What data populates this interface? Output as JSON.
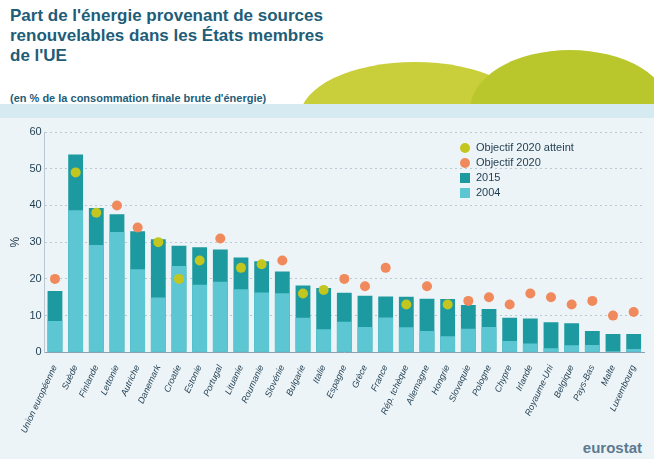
{
  "chart_data": {
    "type": "bar",
    "title": "Part de l'énergie provenant de sources renouvelables dans les États membres de l'UE",
    "subtitle": "(en % de la consommation finale brute d'énergie)",
    "y_label": "%",
    "annotations": [
      "eurostat"
    ],
    "categories": [
      "Union européenne",
      "Suède",
      "Finlande",
      "Lettonie",
      "Autriche",
      "Danemark",
      "Croatie",
      "Estonie",
      "Portugal",
      "Lituanie",
      "Roumanie",
      "Slovénie",
      "Bulgarie",
      "Italie",
      "Espagne",
      "Grèce",
      "France",
      "Rép. tchèque",
      "Allemagne",
      "Hongrie",
      "Slovaquie",
      "Pologne",
      "Chypre",
      "Irlande",
      "Royaume-Uni",
      "Belgique",
      "Pays-Bas",
      "Malte",
      "Luxembourg"
    ],
    "series": [
      {
        "name": "Objectif 2020 atteint",
        "type": "scatter",
        "marker": "circle",
        "color": "#c3c61e",
        "values": [
          null,
          49,
          38,
          null,
          null,
          30,
          20,
          25,
          null,
          23,
          24,
          null,
          16,
          17,
          null,
          null,
          null,
          13,
          null,
          13,
          null,
          null,
          null,
          null,
          null,
          null,
          null,
          null,
          null
        ]
      },
      {
        "name": "Objectif 2020",
        "type": "scatter",
        "marker": "circle",
        "color": "#f08a5d",
        "values": [
          20,
          null,
          null,
          40,
          34,
          null,
          null,
          null,
          31,
          null,
          null,
          25,
          null,
          null,
          20,
          18,
          23,
          null,
          18,
          null,
          14,
          15,
          13,
          16,
          15,
          13,
          14,
          10,
          11
        ]
      },
      {
        "name": "2015",
        "type": "bar",
        "color": "#1c9aa0",
        "values": [
          16.7,
          53.9,
          39.3,
          37.6,
          33.0,
          30.8,
          29.0,
          28.6,
          28.0,
          25.8,
          24.8,
          22.0,
          18.2,
          17.5,
          16.2,
          15.4,
          15.2,
          15.1,
          14.6,
          14.5,
          12.9,
          11.8,
          9.4,
          9.2,
          8.2,
          7.9,
          5.8,
          5.0,
          5.0
        ]
      },
      {
        "name": "2004",
        "type": "bar",
        "color": "#5cc6d2",
        "values": [
          8.5,
          38.7,
          29.2,
          32.8,
          22.6,
          14.9,
          23.5,
          18.4,
          19.2,
          17.2,
          16.3,
          16.1,
          9.4,
          6.3,
          8.3,
          6.9,
          9.5,
          6.8,
          5.8,
          4.4,
          6.4,
          6.9,
          3.1,
          2.4,
          1.1,
          1.9,
          2.0,
          0.1,
          0.9
        ]
      }
    ],
    "ylim": [
      0,
      60
    ],
    "yticks": [
      0,
      10,
      20,
      30,
      40,
      50,
      60
    ],
    "grid": true,
    "legend": "top-right"
  }
}
